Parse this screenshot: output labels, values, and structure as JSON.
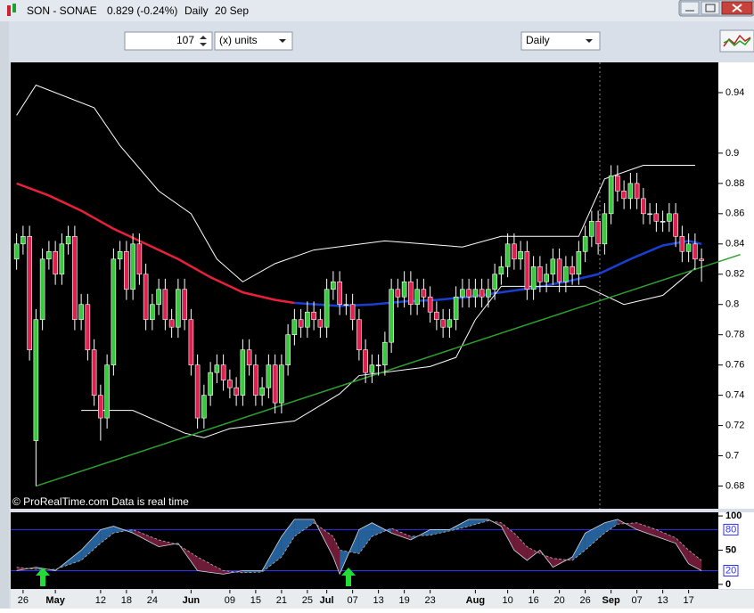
{
  "window": {
    "symbol": "SON - SONAE",
    "quote": "0.829 (-0.24%)",
    "period": "Daily",
    "date": "20 Sep"
  },
  "toolbar": {
    "units_count": 107,
    "units": "(x) units",
    "timeframe": "Daily"
  },
  "watermark": "© ProRealTime.com  Data is real time",
  "chart_data": [
    {
      "type": "candlestick",
      "up_color": "#39c93c",
      "down_color": "#e0204e",
      "flat_color": "#bbbbbb",
      "ylim": [
        0.665,
        0.96
      ],
      "yticks": [
        0.68,
        0.7,
        0.72,
        0.74,
        0.76,
        0.78,
        0.8,
        0.82,
        0.84,
        0.86,
        0.88,
        0.9,
        0.94
      ],
      "categories": [
        null,
        "26",
        null,
        null,
        null,
        null,
        "May",
        null,
        null,
        null,
        null,
        null,
        null,
        "12",
        null,
        null,
        null,
        "18",
        null,
        null,
        null,
        "24",
        null,
        null,
        null,
        null,
        null,
        "Jun",
        null,
        null,
        null,
        null,
        null,
        "09",
        null,
        null,
        null,
        "15",
        null,
        null,
        null,
        "21",
        null,
        null,
        null,
        "25",
        null,
        null,
        "Jul",
        null,
        null,
        null,
        "07",
        null,
        null,
        null,
        "13",
        null,
        null,
        null,
        "19",
        null,
        null,
        null,
        "23",
        null,
        null,
        null,
        null,
        null,
        null,
        "Aug",
        null,
        null,
        null,
        null,
        "10",
        null,
        null,
        null,
        "16",
        null,
        null,
        null,
        "20",
        null,
        null,
        null,
        "26",
        null,
        null,
        null,
        "Sep",
        null,
        null,
        null,
        "07",
        null,
        null,
        null,
        "13",
        null,
        null,
        null,
        "17",
        null,
        null
      ],
      "open": [
        0.83,
        0.84,
        0.845,
        0.71,
        0.79,
        0.83,
        0.835,
        0.82,
        0.84,
        0.845,
        0.79,
        0.8,
        0.77,
        0.74,
        0.725,
        0.76,
        0.83,
        0.835,
        0.81,
        0.84,
        0.82,
        0.79,
        0.8,
        0.81,
        0.79,
        0.785,
        0.81,
        0.79,
        0.76,
        0.725,
        0.74,
        0.755,
        0.76,
        0.75,
        0.745,
        0.74,
        0.77,
        0.76,
        0.74,
        0.745,
        0.76,
        0.735,
        0.76,
        0.78,
        0.79,
        0.785,
        0.795,
        0.79,
        0.785,
        0.81,
        0.815,
        0.8,
        0.8,
        0.79,
        0.77,
        0.755,
        0.76,
        0.76,
        0.775,
        0.81,
        0.805,
        0.815,
        0.8,
        0.81,
        0.805,
        0.795,
        0.79,
        0.785,
        0.79,
        0.805,
        0.81,
        0.805,
        0.81,
        0.805,
        0.81,
        0.82,
        0.825,
        0.84,
        0.83,
        0.835,
        0.81,
        0.825,
        0.815,
        0.82,
        0.83,
        0.815,
        0.825,
        0.82,
        0.835,
        0.845,
        0.855,
        0.84,
        0.86,
        0.885,
        0.875,
        0.87,
        0.88,
        0.87,
        0.86,
        0.86,
        0.855,
        0.855,
        0.86,
        0.845,
        0.835,
        0.84,
        0.83
      ],
      "high": [
        0.847,
        0.852,
        0.852,
        0.797,
        0.837,
        0.842,
        0.842,
        0.847,
        0.852,
        0.852,
        0.807,
        0.807,
        0.777,
        0.747,
        0.767,
        0.837,
        0.842,
        0.842,
        0.847,
        0.847,
        0.827,
        0.807,
        0.817,
        0.817,
        0.797,
        0.817,
        0.817,
        0.797,
        0.767,
        0.747,
        0.762,
        0.767,
        0.767,
        0.757,
        0.752,
        0.777,
        0.777,
        0.767,
        0.752,
        0.767,
        0.767,
        0.767,
        0.787,
        0.797,
        0.797,
        0.802,
        0.802,
        0.797,
        0.817,
        0.822,
        0.822,
        0.807,
        0.807,
        0.797,
        0.777,
        0.767,
        0.767,
        0.782,
        0.817,
        0.817,
        0.822,
        0.822,
        0.817,
        0.817,
        0.812,
        0.802,
        0.797,
        0.797,
        0.812,
        0.817,
        0.817,
        0.817,
        0.817,
        0.817,
        0.827,
        0.832,
        0.847,
        0.847,
        0.842,
        0.842,
        0.832,
        0.832,
        0.827,
        0.837,
        0.837,
        0.832,
        0.832,
        0.842,
        0.852,
        0.862,
        0.862,
        0.867,
        0.892,
        0.892,
        0.882,
        0.887,
        0.887,
        0.877,
        0.867,
        0.867,
        0.862,
        0.867,
        0.867,
        0.852,
        0.847,
        0.847,
        0.837
      ],
      "low": [
        0.823,
        0.833,
        0.763,
        0.68,
        0.783,
        0.823,
        0.813,
        0.813,
        0.833,
        0.783,
        0.783,
        0.763,
        0.733,
        0.71,
        0.718,
        0.753,
        0.823,
        0.803,
        0.803,
        0.813,
        0.783,
        0.783,
        0.793,
        0.783,
        0.778,
        0.778,
        0.783,
        0.753,
        0.718,
        0.718,
        0.733,
        0.748,
        0.743,
        0.738,
        0.733,
        0.733,
        0.753,
        0.733,
        0.733,
        0.738,
        0.728,
        0.728,
        0.753,
        0.773,
        0.778,
        0.778,
        0.783,
        0.778,
        0.778,
        0.803,
        0.793,
        0.793,
        0.783,
        0.763,
        0.748,
        0.748,
        0.753,
        0.753,
        0.768,
        0.798,
        0.798,
        0.793,
        0.793,
        0.798,
        0.788,
        0.783,
        0.778,
        0.778,
        0.783,
        0.798,
        0.798,
        0.798,
        0.798,
        0.798,
        0.803,
        0.813,
        0.818,
        0.823,
        0.823,
        0.803,
        0.803,
        0.808,
        0.808,
        0.813,
        0.808,
        0.808,
        0.813,
        0.813,
        0.828,
        0.838,
        0.833,
        0.833,
        0.853,
        0.868,
        0.863,
        0.863,
        0.863,
        0.853,
        0.853,
        0.848,
        0.848,
        0.848,
        0.838,
        0.828,
        0.828,
        0.823,
        0.815
      ],
      "close": [
        0.84,
        0.845,
        0.77,
        0.79,
        0.83,
        0.835,
        0.82,
        0.84,
        0.845,
        0.79,
        0.8,
        0.77,
        0.74,
        0.725,
        0.76,
        0.83,
        0.835,
        0.81,
        0.84,
        0.82,
        0.79,
        0.8,
        0.81,
        0.79,
        0.785,
        0.81,
        0.79,
        0.76,
        0.725,
        0.74,
        0.755,
        0.76,
        0.75,
        0.745,
        0.74,
        0.77,
        0.76,
        0.74,
        0.745,
        0.76,
        0.735,
        0.76,
        0.78,
        0.79,
        0.785,
        0.795,
        0.79,
        0.785,
        0.81,
        0.815,
        0.8,
        0.8,
        0.79,
        0.77,
        0.755,
        0.76,
        0.76,
        0.775,
        0.81,
        0.805,
        0.815,
        0.8,
        0.81,
        0.805,
        0.795,
        0.79,
        0.785,
        0.79,
        0.805,
        0.81,
        0.805,
        0.81,
        0.805,
        0.81,
        0.82,
        0.825,
        0.84,
        0.83,
        0.835,
        0.81,
        0.825,
        0.815,
        0.82,
        0.83,
        0.815,
        0.825,
        0.82,
        0.835,
        0.845,
        0.855,
        0.84,
        0.86,
        0.885,
        0.875,
        0.87,
        0.88,
        0.87,
        0.86,
        0.86,
        0.855,
        0.855,
        0.86,
        0.845,
        0.835,
        0.84,
        0.83,
        0.829
      ],
      "overlays": [
        {
          "color": "#e8203c",
          "width": 2.5,
          "x": [
            0,
            5,
            10,
            15,
            20,
            25,
            30,
            35,
            40,
            43
          ],
          "values": [
            0.88,
            0.872,
            0.862,
            0.85,
            0.84,
            0.83,
            0.818,
            0.808,
            0.803,
            0.801
          ]
        },
        {
          "color": "#1a3fd0",
          "width": 2.5,
          "x": [
            43,
            50,
            55,
            60,
            65,
            70,
            75,
            80,
            85,
            90,
            95,
            100,
            104,
            106
          ],
          "values": [
            0.801,
            0.799,
            0.8,
            0.802,
            0.803,
            0.805,
            0.808,
            0.811,
            0.815,
            0.82,
            0.83,
            0.839,
            0.842,
            0.84
          ]
        },
        {
          "color": "#ffffff",
          "width": 1,
          "x": [
            0,
            3,
            12,
            16,
            22,
            27,
            31,
            35,
            40,
            46,
            57,
            69,
            75,
            87,
            91,
            97,
            105
          ],
          "values": [
            0.925,
            0.945,
            0.93,
            0.905,
            0.875,
            0.86,
            0.83,
            0.815,
            0.827,
            0.836,
            0.842,
            0.838,
            0.845,
            0.845,
            0.883,
            0.892,
            0.892
          ]
        },
        {
          "color": "#ffffff",
          "width": 1,
          "x": [
            10,
            18,
            26,
            29,
            33,
            43,
            50,
            53,
            64,
            68,
            71,
            75,
            88,
            94,
            100,
            105
          ],
          "values": [
            0.73,
            0.73,
            0.715,
            0.712,
            0.718,
            0.723,
            0.741,
            0.753,
            0.759,
            0.765,
            0.79,
            0.812,
            0.812,
            0.8,
            0.806,
            0.824
          ]
        },
        {
          "color": "#2e9e2e",
          "width": 1.5,
          "x": [
            3,
            112
          ],
          "values": [
            0.68,
            0.833
          ]
        }
      ]
    },
    {
      "type": "stochastic",
      "ylim": [
        -6.7,
        105.3
      ],
      "yticks": [
        0,
        50,
        100
      ],
      "levels": [
        20,
        80
      ],
      "level_color": "#3030ff",
      "fill_up": "#2a6aa8",
      "fill_down": "#7a1e3e",
      "x": [
        0,
        3,
        6,
        10,
        13,
        15,
        18,
        22,
        25,
        28,
        32,
        35,
        38,
        41,
        43,
        46,
        49,
        50,
        53,
        55,
        58,
        61,
        64,
        67,
        70,
        73,
        75,
        77,
        79,
        81,
        83,
        86,
        88,
        91,
        93,
        96,
        99,
        102,
        104,
        106
      ],
      "k": [
        20,
        25,
        20,
        50,
        80,
        85,
        75,
        55,
        60,
        20,
        15,
        20,
        20,
        70,
        95,
        95,
        40,
        15,
        80,
        90,
        75,
        65,
        80,
        80,
        95,
        95,
        85,
        50,
        35,
        50,
        25,
        40,
        75,
        90,
        95,
        80,
        70,
        60,
        30,
        20
      ],
      "d": [
        25,
        22,
        22,
        35,
        60,
        75,
        80,
        65,
        58,
        40,
        20,
        17,
        18,
        40,
        70,
        90,
        70,
        50,
        45,
        70,
        82,
        70,
        72,
        78,
        85,
        93,
        90,
        75,
        55,
        45,
        38,
        35,
        50,
        75,
        88,
        90,
        80,
        68,
        50,
        35
      ]
    }
  ]
}
